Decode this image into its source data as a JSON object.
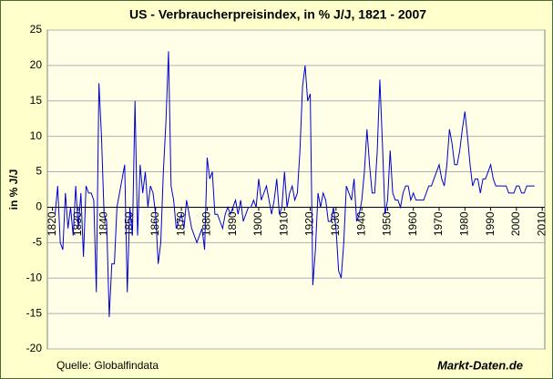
{
  "chart_data": {
    "type": "line",
    "title": "US - Verbraucherpreisindex, in % J/J, 1821 - 2007",
    "y_label": "in % J/J",
    "source": "Quelle: Globalfindata",
    "brand": "Markt-Daten.de",
    "x": [
      1821,
      1822,
      1823,
      1824,
      1825,
      1826,
      1827,
      1828,
      1829,
      1830,
      1831,
      1832,
      1833,
      1834,
      1835,
      1836,
      1837,
      1838,
      1839,
      1840,
      1841,
      1842,
      1843,
      1844,
      1845,
      1846,
      1847,
      1848,
      1849,
      1850,
      1851,
      1852,
      1853,
      1854,
      1855,
      1856,
      1857,
      1858,
      1859,
      1860,
      1861,
      1862,
      1863,
      1864,
      1865,
      1866,
      1867,
      1868,
      1869,
      1870,
      1871,
      1872,
      1873,
      1874,
      1875,
      1876,
      1877,
      1878,
      1879,
      1880,
      1881,
      1882,
      1883,
      1884,
      1885,
      1886,
      1887,
      1888,
      1889,
      1890,
      1891,
      1892,
      1893,
      1894,
      1895,
      1896,
      1897,
      1898,
      1899,
      1900,
      1901,
      1902,
      1903,
      1904,
      1905,
      1906,
      1907,
      1908,
      1909,
      1910,
      1911,
      1912,
      1913,
      1914,
      1915,
      1916,
      1917,
      1918,
      1919,
      1920,
      1921,
      1922,
      1923,
      1924,
      1925,
      1926,
      1927,
      1928,
      1929,
      1930,
      1931,
      1932,
      1933,
      1934,
      1935,
      1936,
      1937,
      1938,
      1939,
      1940,
      1941,
      1942,
      1943,
      1944,
      1945,
      1946,
      1947,
      1948,
      1949,
      1950,
      1951,
      1952,
      1953,
      1954,
      1955,
      1956,
      1957,
      1958,
      1959,
      1960,
      1961,
      1962,
      1963,
      1964,
      1965,
      1966,
      1967,
      1968,
      1969,
      1970,
      1971,
      1972,
      1973,
      1974,
      1975,
      1976,
      1977,
      1978,
      1979,
      1980,
      1981,
      1982,
      1983,
      1984,
      1985,
      1986,
      1987,
      1988,
      1989,
      1990,
      1991,
      1992,
      1993,
      1994,
      1995,
      1996,
      1997,
      1998,
      1999,
      2000,
      2001,
      2002,
      2003,
      2004,
      2005,
      2006,
      2007
    ],
    "series": [
      {
        "color": "#0000cc",
        "values": [
          -1,
          3,
          -5,
          -6,
          2,
          -3,
          0,
          -4,
          3,
          -3,
          2,
          -7,
          3,
          2,
          2,
          1,
          -12,
          17.5,
          10,
          -1,
          -2,
          -15.5,
          -8,
          -8,
          0,
          2,
          4,
          6,
          -12,
          0,
          -4,
          15,
          -4,
          6,
          2,
          5,
          0,
          3,
          2,
          -1,
          -8,
          -5,
          5,
          12,
          22,
          3,
          1,
          -3,
          -2,
          -1,
          -3,
          1,
          -1,
          -3,
          -4,
          -5,
          -4,
          -3,
          -6,
          7,
          4,
          5,
          -1,
          -1,
          -2,
          -3,
          -1,
          0,
          -1,
          0,
          1,
          -1,
          1,
          -2,
          -1,
          0,
          0,
          1,
          0,
          4,
          1,
          2,
          3,
          1,
          -1,
          1,
          4,
          -1,
          0,
          5,
          0,
          2,
          3,
          1,
          2,
          8,
          17,
          20,
          15,
          16,
          -11,
          -6,
          2,
          0,
          2,
          1,
          -2,
          -2,
          0,
          -3,
          -9,
          -10,
          -5,
          3,
          2,
          1,
          4,
          -2,
          -1,
          1,
          5,
          11,
          6,
          2,
          2,
          8,
          18,
          9,
          -1,
          1,
          8,
          2,
          1,
          1,
          0,
          2,
          3,
          3,
          1,
          2,
          1,
          1,
          1,
          1,
          2,
          3,
          3,
          4,
          5,
          6,
          4,
          3,
          6,
          11,
          9,
          6,
          6,
          8,
          11,
          13.5,
          10,
          6,
          3,
          4,
          4,
          2,
          4,
          4,
          5,
          6,
          4,
          3,
          3,
          3,
          3,
          3,
          2,
          2,
          2,
          3,
          3,
          2,
          2,
          3,
          3,
          3,
          3
        ]
      }
    ],
    "xlim": [
      1818,
      2011
    ],
    "xticks": [
      1820,
      1830,
      1840,
      1850,
      1860,
      1870,
      1880,
      1890,
      1900,
      1910,
      1920,
      1930,
      1940,
      1950,
      1960,
      1970,
      1980,
      1990,
      2000,
      2010
    ],
    "ylim": [
      -20,
      25
    ],
    "yticks": [
      -20,
      -15,
      -10,
      -5,
      0,
      5,
      10,
      15,
      20,
      25
    ],
    "grid": true
  }
}
